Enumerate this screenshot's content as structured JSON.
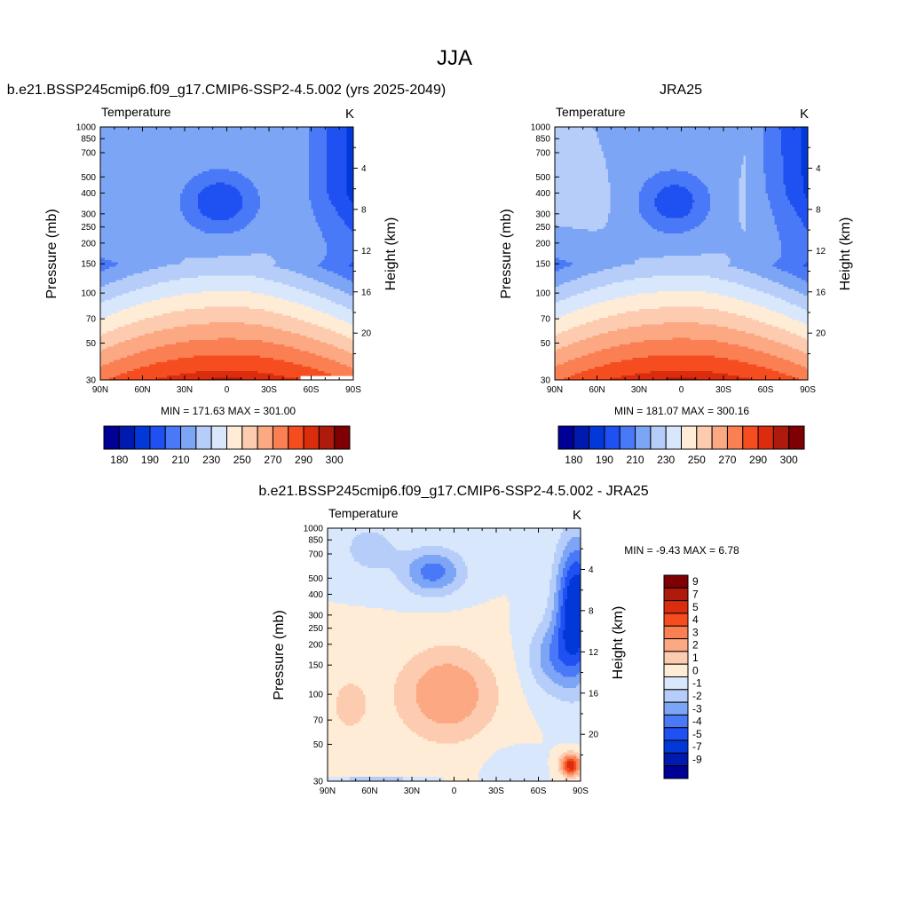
{
  "figure": {
    "title": "JJA"
  },
  "panels": [
    {
      "key": "model",
      "title": "b.e21.BSSP245cmip6.f09_g17.CMIP6-SSP2-4.5.002 (yrs 2025-2049)",
      "var_label": "Temperature",
      "units": "K",
      "ylabel": "Pressure (mb)",
      "ylabel_right": "Height (km)",
      "minmax": "MIN = 171.63  MAX = 301.00"
    },
    {
      "key": "obs",
      "title": "JRA25",
      "var_label": "Temperature",
      "units": "K",
      "ylabel": "Pressure (mb)",
      "ylabel_right": "Height (km)",
      "minmax": "MIN = 181.07  MAX = 300.16"
    },
    {
      "key": "diff",
      "title": "b.e21.BSSP245cmip6.f09_g17.CMIP6-SSP2-4.5.002 - JRA25",
      "var_label": "Temperature",
      "units": "K",
      "ylabel": "Pressure (mb)",
      "ylabel_right": "Height (km)",
      "minmax": "MIN =  -9.43  MAX =   6.78"
    }
  ],
  "chart_data": [
    {
      "type": "heatmap",
      "title": "b.e21.BSSP245cmip6.f09_g17.CMIP6-SSP2-4.5.002 (yrs 2025-2049)",
      "variable": "Temperature",
      "units": "K",
      "ylabel": "Pressure (mb)",
      "ylabel_right": "Height (km)",
      "x_ticks": [
        "90N",
        "60N",
        "30N",
        "0",
        "30S",
        "60S",
        "90S"
      ],
      "x_values": [
        90,
        60,
        30,
        0,
        -30,
        -60,
        -90
      ],
      "y_ticks": [
        30,
        50,
        70,
        100,
        150,
        200,
        250,
        300,
        400,
        500,
        700,
        850,
        1000
      ],
      "y_scale": "log",
      "ylim": [
        1000,
        30
      ],
      "height_ticks": [
        4,
        8,
        12,
        16,
        20
      ],
      "min": 171.63,
      "max": 301.0,
      "levels": [
        180,
        185,
        190,
        200,
        210,
        220,
        230,
        240,
        250,
        260,
        270,
        280,
        290,
        295,
        300
      ],
      "colorbar_labels": [
        "180",
        "190",
        "210",
        "230",
        "250",
        "270",
        "290",
        "300"
      ],
      "colorbar_colors": [
        "#000096",
        "#0019AE",
        "#0238D8",
        "#1E50F2",
        "#4A79F7",
        "#7DA5F6",
        "#B5CDF8",
        "#D8E7FB",
        "#FFECD6",
        "#FDCCB0",
        "#FCA883",
        "#FA7F53",
        "#F54D1F",
        "#DB2C0E",
        "#AE1A0B",
        "#7E0004"
      ]
    },
    {
      "type": "heatmap",
      "title": "JRA25",
      "variable": "Temperature",
      "units": "K",
      "ylabel": "Pressure (mb)",
      "ylabel_right": "Height (km)",
      "x_ticks": [
        "90N",
        "60N",
        "30N",
        "0",
        "30S",
        "60S",
        "90S"
      ],
      "x_values": [
        90,
        60,
        30,
        0,
        -30,
        -60,
        -90
      ],
      "y_ticks": [
        30,
        50,
        70,
        100,
        150,
        200,
        250,
        300,
        400,
        500,
        700,
        850,
        1000
      ],
      "y_scale": "log",
      "ylim": [
        1000,
        30
      ],
      "height_ticks": [
        4,
        8,
        12,
        16,
        20
      ],
      "min": 181.07,
      "max": 300.16,
      "levels": [
        180,
        185,
        190,
        200,
        210,
        220,
        230,
        240,
        250,
        260,
        270,
        280,
        290,
        295,
        300
      ],
      "colorbar_labels": [
        "180",
        "190",
        "210",
        "230",
        "250",
        "270",
        "290",
        "300"
      ],
      "colorbar_colors": [
        "#000096",
        "#0019AE",
        "#0238D8",
        "#1E50F2",
        "#4A79F7",
        "#7DA5F6",
        "#B5CDF8",
        "#D8E7FB",
        "#FFECD6",
        "#FDCCB0",
        "#FCA883",
        "#FA7F53",
        "#F54D1F",
        "#DB2C0E",
        "#AE1A0B",
        "#7E0004"
      ]
    },
    {
      "type": "heatmap",
      "title": "b.e21.BSSP245cmip6.f09_g17.CMIP6-SSP2-4.5.002 - JRA25",
      "variable": "Temperature",
      "units": "K",
      "ylabel": "Pressure (mb)",
      "ylabel_right": "Height (km)",
      "x_ticks": [
        "90N",
        "60N",
        "30N",
        "0",
        "30S",
        "60S",
        "90S"
      ],
      "x_values": [
        90,
        60,
        30,
        0,
        -30,
        -60,
        -90
      ],
      "y_ticks": [
        30,
        50,
        70,
        100,
        150,
        200,
        250,
        300,
        400,
        500,
        700,
        850,
        1000
      ],
      "y_scale": "log",
      "ylim": [
        1000,
        30
      ],
      "height_ticks": [
        4,
        8,
        12,
        16,
        20
      ],
      "min": -9.43,
      "max": 6.78,
      "colorbar_labels": [
        "9",
        "7",
        "5",
        "4",
        "3",
        "2",
        "1",
        "0",
        "-1",
        "-2",
        "-3",
        "-4",
        "-5",
        "-7",
        "-9"
      ],
      "colorbar_colors": [
        "#7E0004",
        "#AE1A0B",
        "#DB2C0E",
        "#F54D1F",
        "#FA7F53",
        "#FCA883",
        "#FDCCB0",
        "#FFECD6",
        "#D8E7FB",
        "#B5CDF8",
        "#7DA5F6",
        "#4A79F7",
        "#1E50F2",
        "#0238D8",
        "#0019AE",
        "#000096"
      ]
    }
  ]
}
